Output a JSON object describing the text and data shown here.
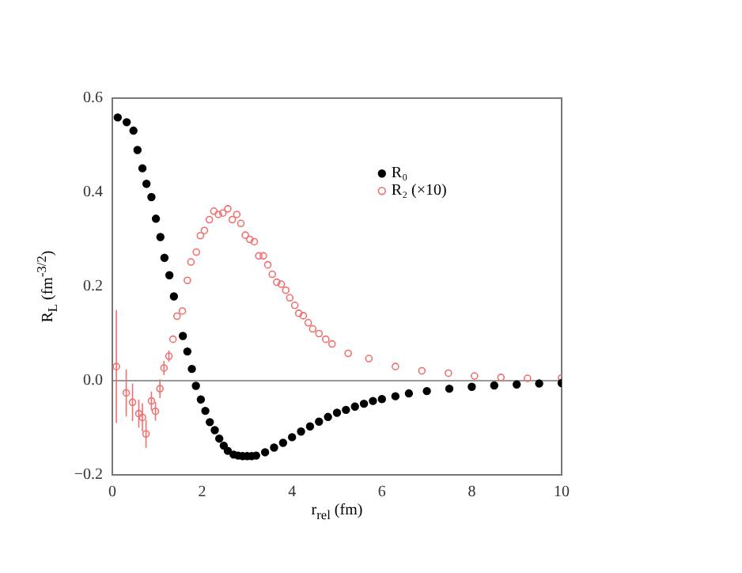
{
  "chart_data": {
    "type": "scatter",
    "xlabel": "r$_{rel}$ (fm)",
    "ylabel": "R$_{L}$ (fm$^{-3/2}$)",
    "xlim": [
      0,
      10
    ],
    "ylim": [
      -0.2,
      0.6
    ],
    "xticks": [
      0,
      2,
      4,
      6,
      8,
      10
    ],
    "yticks": [
      -0.2,
      {
        "value": 0,
        "label": "0.0"
      },
      0.2,
      0.4,
      0.6
    ],
    "grid": false,
    "legend": "top right",
    "marker": "circle",
    "ref_lines": [
      {
        "axis": "y",
        "value": 0,
        "color": "#999999"
      }
    ],
    "series": [
      {
        "name": "R₀",
        "color": "#000000",
        "x": [
          0.12,
          0.32,
          0.47,
          0.56,
          0.67,
          0.76,
          0.87,
          0.97,
          1.07,
          1.16,
          1.27,
          1.37,
          1.57,
          1.67,
          1.77,
          1.86,
          1.97,
          2.07,
          2.17,
          2.28,
          2.38,
          2.48,
          2.57,
          2.7,
          2.8,
          2.9,
          3.0,
          3.1,
          3.2,
          3.4,
          3.6,
          3.8,
          4.0,
          4.2,
          4.4,
          4.6,
          4.8,
          5.0,
          5.2,
          5.4,
          5.6,
          5.8,
          6.0,
          6.3,
          6.6,
          7.0,
          7.5,
          8.0,
          8.5,
          9.0,
          9.5,
          10.0
        ],
        "values": [
          0.559,
          0.549,
          0.531,
          0.49,
          0.451,
          0.418,
          0.39,
          0.344,
          0.305,
          0.261,
          0.224,
          0.179,
          0.095,
          0.062,
          0.025,
          -0.011,
          -0.04,
          -0.064,
          -0.088,
          -0.105,
          -0.123,
          -0.138,
          -0.149,
          -0.157,
          -0.159,
          -0.16,
          -0.16,
          -0.16,
          -0.159,
          -0.152,
          -0.142,
          -0.132,
          -0.12,
          -0.108,
          -0.097,
          -0.087,
          -0.077,
          -0.068,
          -0.062,
          -0.055,
          -0.049,
          -0.043,
          -0.039,
          -0.033,
          -0.027,
          -0.022,
          -0.017,
          -0.013,
          -0.01,
          -0.008,
          -0.006,
          -0.005
        ]
      },
      {
        "name": "R₂ (×10)",
        "color": "#f07070",
        "x": [
          0.09,
          0.31,
          0.45,
          0.59,
          0.67,
          0.75,
          0.87,
          0.96,
          1.06,
          1.15,
          1.26,
          1.35,
          1.44,
          1.56,
          1.67,
          1.75,
          1.87,
          1.96,
          2.05,
          2.16,
          2.26,
          2.36,
          2.46,
          2.57,
          2.67,
          2.77,
          2.86,
          2.96,
          3.06,
          3.16,
          3.26,
          3.36,
          3.46,
          3.56,
          3.66,
          3.76,
          3.86,
          3.95,
          4.06,
          4.15,
          4.25,
          4.36,
          4.46,
          4.6,
          4.75,
          4.89,
          5.25,
          5.71,
          6.3,
          6.89,
          7.48,
          8.06,
          8.65,
          9.24,
          10.0
        ],
        "values": [
          0.03,
          -0.026,
          -0.046,
          -0.07,
          -0.078,
          -0.113,
          -0.043,
          -0.065,
          -0.017,
          0.027,
          0.052,
          0.088,
          0.137,
          0.148,
          0.213,
          0.252,
          0.273,
          0.308,
          0.319,
          0.342,
          0.36,
          0.353,
          0.356,
          0.365,
          0.342,
          0.353,
          0.334,
          0.309,
          0.3,
          0.295,
          0.265,
          0.265,
          0.246,
          0.226,
          0.209,
          0.205,
          0.192,
          0.176,
          0.16,
          0.143,
          0.138,
          0.123,
          0.11,
          0.1,
          0.088,
          0.078,
          0.058,
          0.047,
          0.03,
          0.021,
          0.016,
          0.01,
          0.007,
          0.005,
          0.006
        ],
        "errors": [
          0.12,
          0.05,
          0.04,
          0.03,
          0.03,
          0.03,
          0.02,
          0.02,
          0.02,
          0.015,
          0.012,
          null,
          null,
          null,
          null,
          null,
          null,
          null,
          null,
          null,
          null,
          null,
          null,
          null,
          null,
          null,
          null,
          null,
          null,
          null,
          null,
          null,
          null,
          null,
          null,
          null,
          null,
          null,
          null,
          null,
          null,
          null,
          null,
          null,
          null,
          null,
          null,
          null,
          null,
          null,
          null,
          null,
          null,
          null,
          null
        ]
      }
    ]
  }
}
